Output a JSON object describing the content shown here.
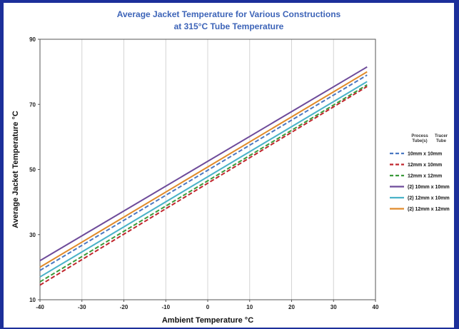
{
  "chart_data": {
    "type": "line",
    "title_lines": [
      "Average Jacket Temperature for Various Constructions",
      "at 315°C Tube Temperature"
    ],
    "xlabel": "Ambient Temperature  °C",
    "ylabel": "Average Jacket Temperature  °C",
    "xlim": [
      -40,
      40
    ],
    "ylim": [
      10,
      90
    ],
    "xticks": [
      -40,
      -30,
      -20,
      -10,
      0,
      10,
      20,
      30,
      40
    ],
    "yticks": [
      10,
      30,
      50,
      70,
      90
    ],
    "grid": "vertical",
    "legend_position": "right",
    "legend_headers": [
      [
        "Process",
        "Tube(s)"
      ],
      [
        "Tracer",
        "Tube"
      ]
    ],
    "series": [
      {
        "name": "10mm x 10mm",
        "color": "#4a78c2",
        "dash": "dashed",
        "x": [
          -40,
          38
        ],
        "y": [
          19.0,
          79.0
        ]
      },
      {
        "name": "12mm x 10mm",
        "color": "#c0262d",
        "dash": "dashed",
        "x": [
          -40,
          38
        ],
        "y": [
          14.5,
          75.5
        ]
      },
      {
        "name": "12mm x 12mm",
        "color": "#3a9a3a",
        "dash": "dashed",
        "x": [
          -40,
          38
        ],
        "y": [
          15.5,
          76.0
        ]
      },
      {
        "name": "(2) 10mm x 10mm",
        "color": "#6e4b9a",
        "dash": "solid",
        "x": [
          -40,
          38
        ],
        "y": [
          22.0,
          81.5
        ]
      },
      {
        "name": "(2) 12mm x 10mm",
        "color": "#4ab2c8",
        "dash": "solid",
        "x": [
          -40,
          38
        ],
        "y": [
          17.0,
          77.0
        ]
      },
      {
        "name": "(2) 12mm x 12mm",
        "color": "#e08a2a",
        "dash": "solid",
        "x": [
          -40,
          38
        ],
        "y": [
          20.0,
          80.0
        ]
      }
    ]
  }
}
